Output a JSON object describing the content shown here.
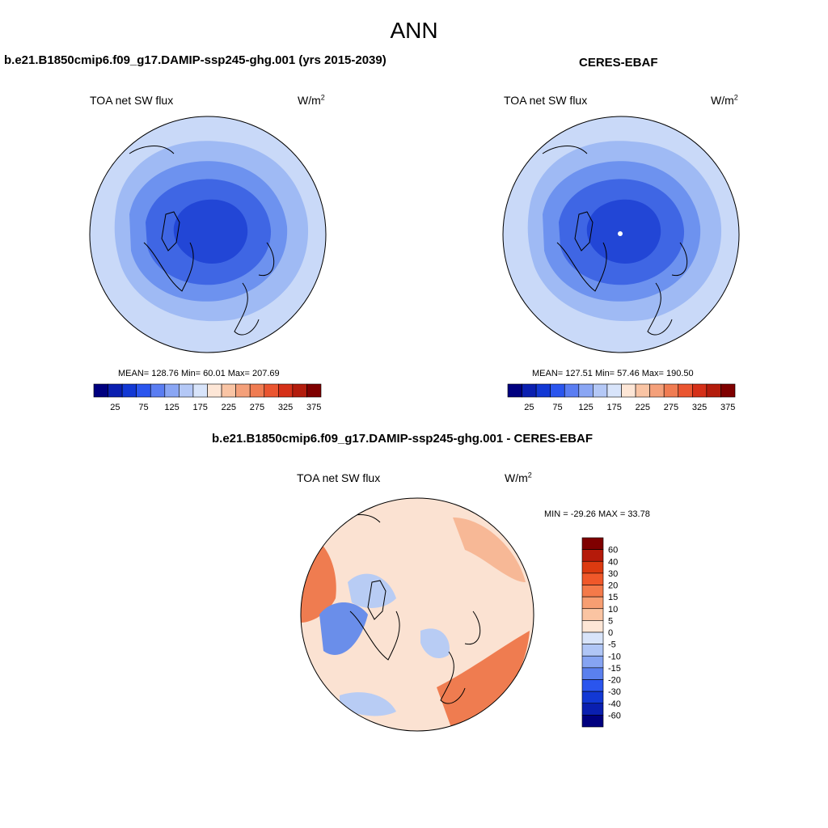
{
  "main_title": "ANN",
  "panels": [
    {
      "title": "b.e21.B1850cmip6.f09_g17.DAMIP-ssp245-ghg.001 (yrs 2015-2039)",
      "var_label": "TOA net SW flux",
      "units": "W/m",
      "units_sup": "2",
      "stats": "MEAN= 128.76  Min=  60.01  Max= 207.69"
    },
    {
      "title": "CERES-EBAF",
      "var_label": "TOA net SW flux",
      "units": "W/m",
      "units_sup": "2",
      "stats": "MEAN= 127.51  Min=  57.46  Max= 190.50"
    },
    {
      "title": "b.e21.B1850cmip6.f09_g17.DAMIP-ssp245-ghg.001 - CERES-EBAF",
      "var_label": "TOA net SW flux",
      "units": "W/m",
      "units_sup": "2",
      "stats": "MIN = -29.26 MAX =  33.78"
    }
  ],
  "colorbar_abs": {
    "ticks": [
      "25",
      "75",
      "125",
      "175",
      "225",
      "275",
      "325",
      "375"
    ],
    "colors": [
      "#00007f",
      "#0a1fb0",
      "#1238d4",
      "#2a55ee",
      "#5a7df2",
      "#8aa6f4",
      "#b4c8f6",
      "#d8e4fa",
      "#fde6d6",
      "#f9c4a4",
      "#f4a07a",
      "#f07c52",
      "#ea5530",
      "#d53018",
      "#b31c0c",
      "#7f0000"
    ]
  },
  "colorbar_diff": {
    "ticks": [
      "60",
      "40",
      "30",
      "20",
      "15",
      "10",
      "5",
      "0",
      "-5",
      "-10",
      "-15",
      "-20",
      "-30",
      "-40",
      "-60"
    ],
    "colors": [
      "#7f0000",
      "#b51a0a",
      "#dc3a10",
      "#f0582a",
      "#f47a4a",
      "#f79e72",
      "#fac4a2",
      "#fde6d6",
      "#d8e4fa",
      "#b0c6f6",
      "#86a4f2",
      "#5a80ee",
      "#2a55ee",
      "#1238d4",
      "#0a1fb0",
      "#00007f"
    ]
  },
  "map_colors": {
    "abs_outer": "#c9d9f8",
    "abs_mid": "#9fbaf4",
    "abs_inner": "#6d92ef",
    "abs_core": "#3f66e4",
    "abs_center": "#2246d6",
    "diff_base": "#fbe2d2",
    "diff_warm": "#f7b896",
    "diff_hot": "#ef7c50",
    "diff_cool": "#b8ccf4",
    "diff_cold": "#6a8eea"
  }
}
